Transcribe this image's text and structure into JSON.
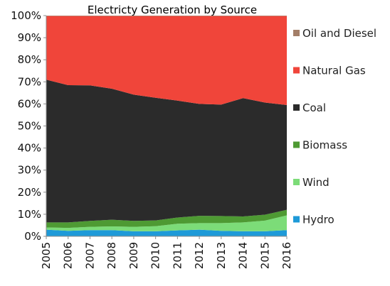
{
  "chart_data": {
    "type": "area",
    "stacked": true,
    "normalized": true,
    "title": "Electricty Generation by Source",
    "xlabel": "",
    "ylabel": "",
    "x": [
      "2005",
      "2006",
      "2007",
      "2008",
      "2009",
      "2010",
      "2011",
      "2012",
      "2013",
      "2014",
      "2015",
      "2016"
    ],
    "ylim": [
      0,
      100
    ],
    "yticks": [
      0,
      10,
      20,
      30,
      40,
      50,
      60,
      70,
      80,
      90,
      100
    ],
    "ytick_labels": [
      "0%",
      "10%",
      "20%",
      "30%",
      "40%",
      "50%",
      "60%",
      "70%",
      "80%",
      "90%",
      "100%"
    ],
    "grid": false,
    "legend_position": "right",
    "series": [
      {
        "name": "Hydro",
        "color": "#1E9AD8",
        "values": [
          3.0,
          2.5,
          2.8,
          2.8,
          2.3,
          2.3,
          2.7,
          3.0,
          2.5,
          2.3,
          2.3,
          2.8
        ]
      },
      {
        "name": "Wind",
        "color": "#7CDC78",
        "values": [
          1.0,
          1.3,
          1.5,
          1.7,
          2.0,
          2.3,
          3.0,
          3.0,
          3.5,
          4.0,
          4.8,
          6.7
        ]
      },
      {
        "name": "Biomass",
        "color": "#4E9A33",
        "values": [
          2.3,
          2.5,
          2.7,
          3.0,
          2.7,
          2.6,
          2.8,
          3.3,
          3.2,
          2.7,
          2.7,
          2.5
        ]
      },
      {
        "name": "Coal",
        "color": "#2B2B2B",
        "values": [
          64.7,
          62.2,
          61.4,
          59.4,
          57.2,
          55.6,
          53.0,
          50.7,
          50.5,
          53.6,
          50.8,
          47.5
        ]
      },
      {
        "name": "Natural Gas",
        "color": "#F0453A",
        "values": [
          28.8,
          31.3,
          31.4,
          32.9,
          35.6,
          37.0,
          38.3,
          39.8,
          40.1,
          37.2,
          39.2,
          40.3
        ]
      },
      {
        "name": "Oil and Diesel",
        "color": "#A37E68",
        "values": [
          0.2,
          0.2,
          0.2,
          0.2,
          0.2,
          0.2,
          0.2,
          0.2,
          0.2,
          0.2,
          0.2,
          0.2
        ]
      }
    ],
    "legend_order": [
      "Oil and Diesel",
      "Natural Gas",
      "Coal",
      "Biomass",
      "Wind",
      "Hydro"
    ]
  }
}
